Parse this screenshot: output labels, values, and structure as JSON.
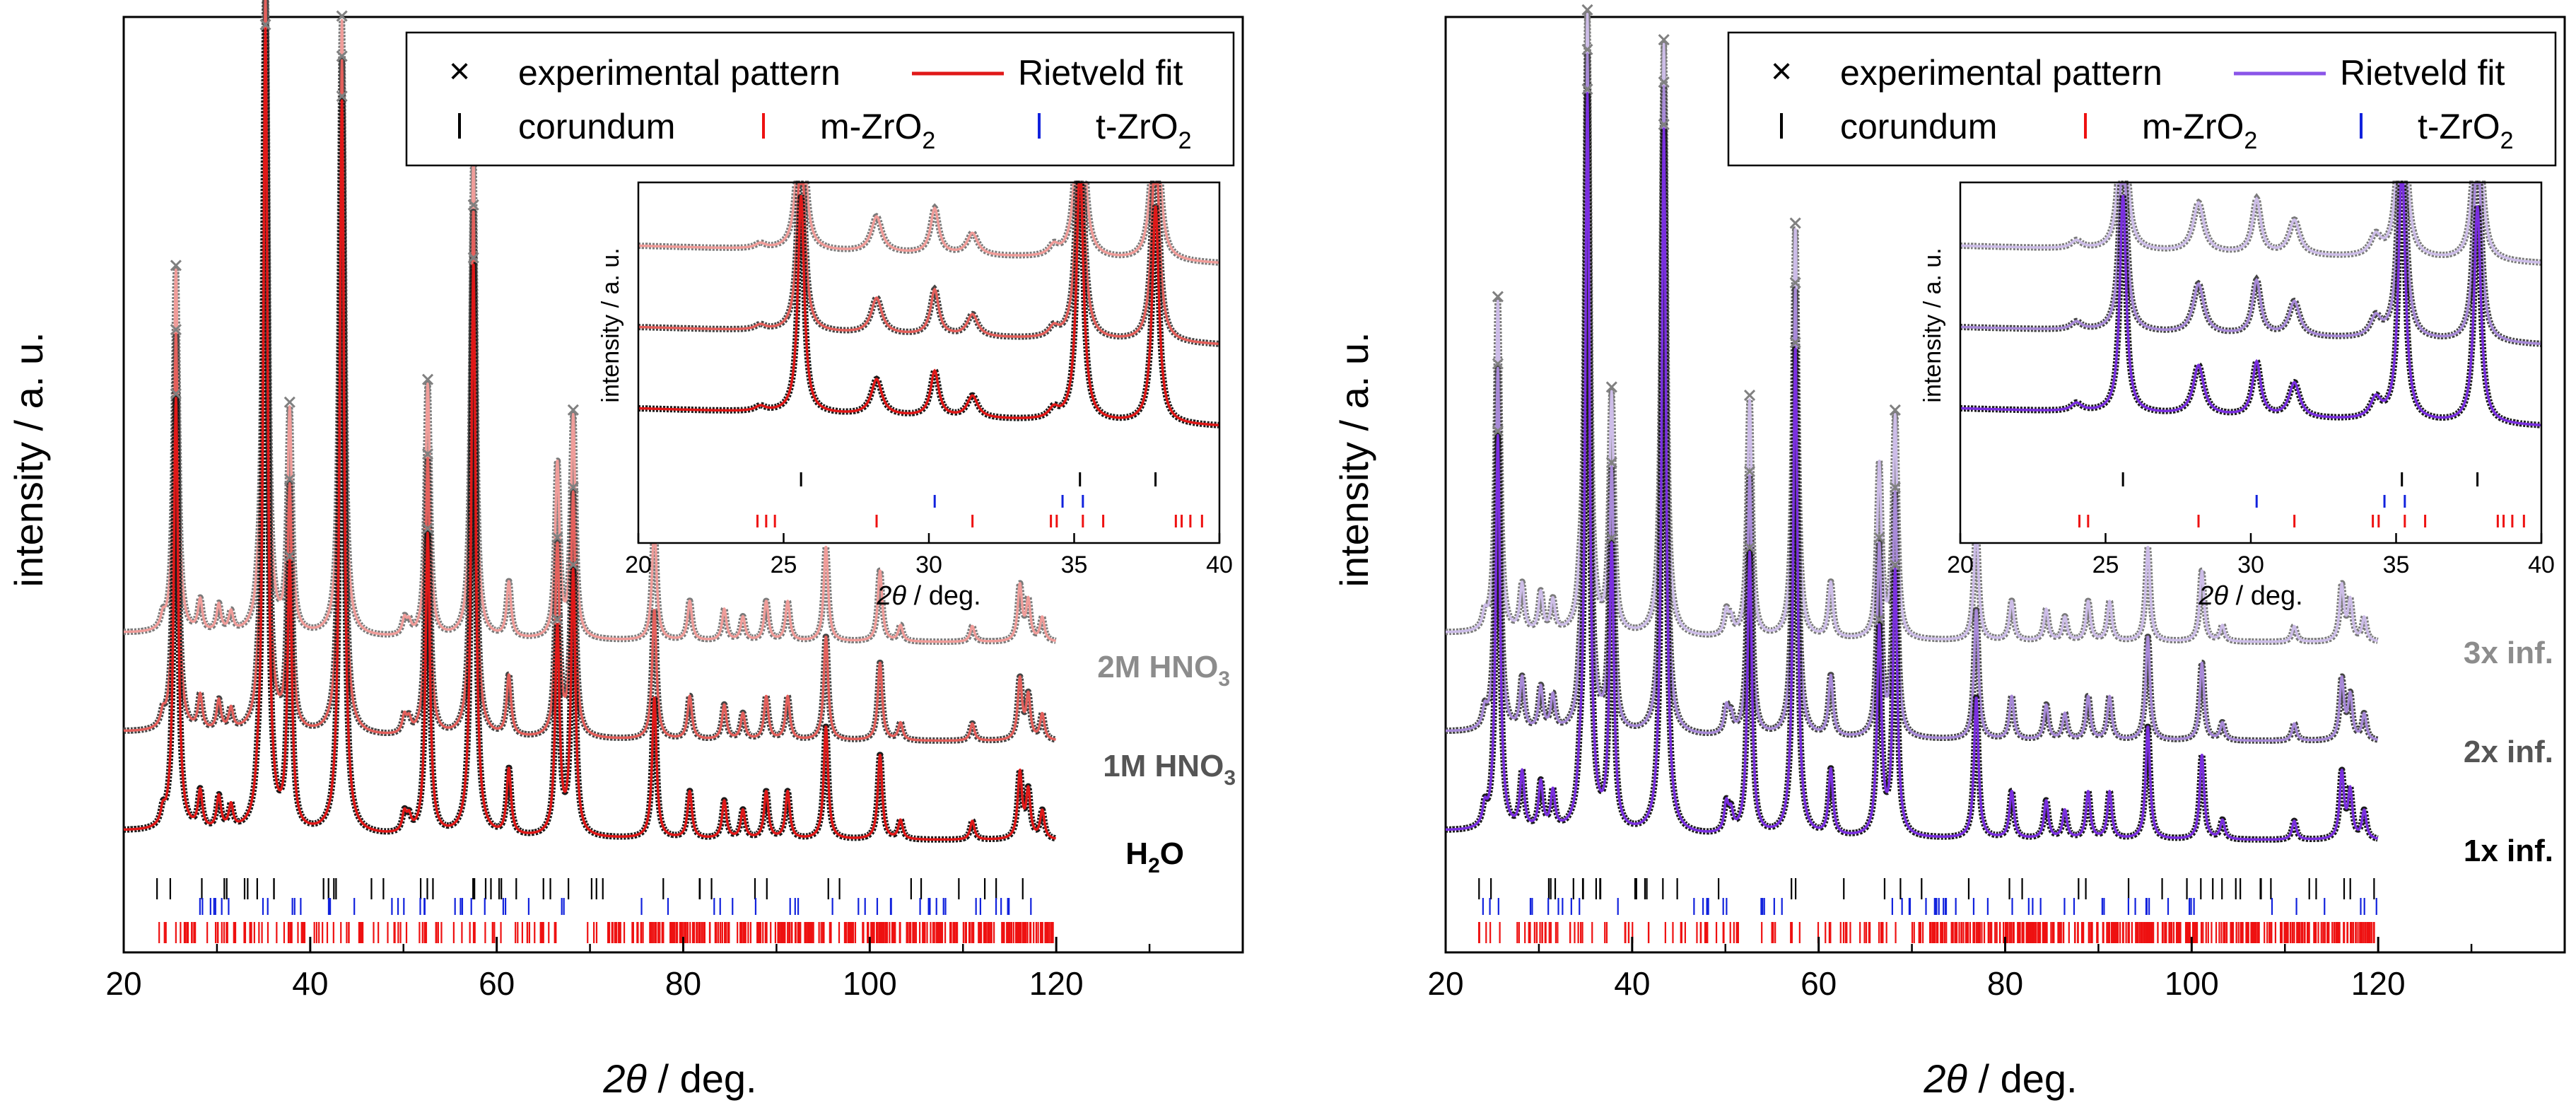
{
  "chart_data": [
    {
      "type": "line",
      "panel": "left",
      "xlabel_var": "2θ",
      "xlabel_unit": " / deg.",
      "ylabel": "intensity / a. u.",
      "xlim": [
        20,
        140
      ],
      "xticks": [
        20,
        40,
        60,
        80,
        100,
        120
      ],
      "x_data_range": [
        20,
        120
      ],
      "legend": {
        "position": "top-right",
        "entries": [
          {
            "marker": "×",
            "label": "experimental pattern"
          },
          {
            "marker": "line",
            "label": "Rietveld fit"
          },
          {
            "marker": "|",
            "label": "corundum"
          },
          {
            "marker": "|",
            "label": "m-ZrO",
            "sub": "2"
          },
          {
            "marker": "|",
            "label": "t-ZrO",
            "sub": "2"
          }
        ]
      },
      "series": [
        {
          "name": "H₂O",
          "label": "H",
          "sub": "2",
          "label_tail": "O",
          "fit_color": "#e01818",
          "marker_color": "#1a1a1a",
          "label_color": "#000000",
          "offset": 0
        },
        {
          "name": "1M HNO₃",
          "label": "1M HNO",
          "sub": "3",
          "label_tail": "",
          "fit_color": "#e4605c",
          "marker_color": "#444444",
          "label_color": "#555555",
          "offset": 1
        },
        {
          "name": "2M HNO₃",
          "label": "2M HNO",
          "sub": "3",
          "label_tail": "",
          "fit_color": "#f09d9a",
          "marker_color": "#7a7a7a",
          "label_color": "#8c8c8c",
          "offset": 2
        }
      ],
      "main_peaks": [
        {
          "x": 25.6,
          "h": 0.46
        },
        {
          "x": 35.2,
          "h": 0.85
        },
        {
          "x": 37.8,
          "h": 0.28
        },
        {
          "x": 43.4,
          "h": 0.78
        },
        {
          "x": 52.6,
          "h": 0.32
        },
        {
          "x": 57.5,
          "h": 0.61
        },
        {
          "x": 61.3,
          "h": 0.07
        },
        {
          "x": 66.5,
          "h": 0.22
        },
        {
          "x": 68.2,
          "h": 0.28
        },
        {
          "x": 76.9,
          "h": 0.15
        },
        {
          "x": 80.7,
          "h": 0.05
        },
        {
          "x": 84.4,
          "h": 0.04
        },
        {
          "x": 86.4,
          "h": 0.03
        },
        {
          "x": 88.9,
          "h": 0.05
        },
        {
          "x": 91.2,
          "h": 0.05
        },
        {
          "x": 95.3,
          "h": 0.12
        },
        {
          "x": 101.1,
          "h": 0.09
        },
        {
          "x": 103.3,
          "h": 0.02
        },
        {
          "x": 111.0,
          "h": 0.02
        },
        {
          "x": 116.1,
          "h": 0.07
        },
        {
          "x": 117.0,
          "h": 0.05
        },
        {
          "x": 118.5,
          "h": 0.03
        }
      ],
      "minor_peaks": [
        {
          "x": 24.2,
          "h": 0.015
        },
        {
          "x": 28.2,
          "h": 0.04
        },
        {
          "x": 30.2,
          "h": 0.035
        },
        {
          "x": 31.5,
          "h": 0.025
        },
        {
          "x": 34.4,
          "h": 0.02
        },
        {
          "x": 50.1,
          "h": 0.02
        },
        {
          "x": 50.6,
          "h": 0.015
        }
      ],
      "inset": {
        "xlim": [
          20,
          40
        ],
        "xticks": [
          20,
          25,
          30,
          35,
          40
        ],
        "xlabel_var": "2θ",
        "xlabel_unit": " / deg.",
        "ylabel": "intensity / a. u.",
        "peaks": [
          {
            "x": 24.2,
            "h": 0.05,
            "w": 0.22
          },
          {
            "x": 25.6,
            "h": 2.2,
            "w": 0.13
          },
          {
            "x": 28.2,
            "h": 0.36,
            "w": 0.22
          },
          {
            "x": 30.2,
            "h": 0.46,
            "w": 0.17
          },
          {
            "x": 31.5,
            "h": 0.22,
            "w": 0.22
          },
          {
            "x": 34.3,
            "h": 0.1,
            "w": 0.2
          },
          {
            "x": 35.2,
            "h": 2.6,
            "w": 0.14
          },
          {
            "x": 37.8,
            "h": 2.2,
            "w": 0.14
          }
        ],
        "ticks_corundum": [
          25.6,
          35.2,
          37.8
        ],
        "ticks_t": [
          30.2,
          34.6,
          35.3
        ],
        "ticks_m": [
          24.1,
          24.4,
          24.7,
          28.2,
          31.5,
          34.2,
          34.4,
          35.3,
          36.0,
          38.5,
          38.7,
          39.0,
          39.4
        ]
      }
    },
    {
      "type": "line",
      "panel": "right",
      "xlabel_var": "2θ",
      "xlabel_unit": " / deg.",
      "ylabel": "intensity / a. u.",
      "xlim": [
        20,
        140
      ],
      "xticks": [
        20,
        40,
        60,
        80,
        100,
        120
      ],
      "x_data_range": [
        20,
        120
      ],
      "legend": {
        "position": "top-right",
        "entries": [
          {
            "marker": "×",
            "label": "experimental pattern"
          },
          {
            "marker": "line",
            "label": "Rietveld fit"
          },
          {
            "marker": "|",
            "label": "corundum"
          },
          {
            "marker": "|",
            "label": "m-ZrO",
            "sub": "2"
          },
          {
            "marker": "|",
            "label": "t-ZrO",
            "sub": "2"
          }
        ]
      },
      "series": [
        {
          "name": "1x inf.",
          "label": "1x inf.",
          "sub": "",
          "label_tail": "",
          "fit_color": "#7a2fe0",
          "marker_color": "#1a1a1a",
          "label_color": "#000000",
          "offset": 0
        },
        {
          "name": "2x inf.",
          "label": "2x inf.",
          "sub": "",
          "label_tail": "",
          "fit_color": "#a88ad8",
          "marker_color": "#444444",
          "label_color": "#555555",
          "offset": 1
        },
        {
          "name": "3x inf.",
          "label": "3x inf.",
          "sub": "",
          "label_tail": "",
          "fit_color": "#cdbde8",
          "marker_color": "#7a7a7a",
          "label_color": "#8c8c8c",
          "offset": 2
        }
      ],
      "main_peaks": [
        {
          "x": 25.6,
          "h": 0.42
        },
        {
          "x": 35.2,
          "h": 0.78
        },
        {
          "x": 37.8,
          "h": 0.3
        },
        {
          "x": 43.4,
          "h": 0.75
        },
        {
          "x": 52.6,
          "h": 0.3
        },
        {
          "x": 57.5,
          "h": 0.52
        },
        {
          "x": 61.3,
          "h": 0.07
        },
        {
          "x": 66.5,
          "h": 0.22
        },
        {
          "x": 68.2,
          "h": 0.28
        },
        {
          "x": 76.9,
          "h": 0.15
        },
        {
          "x": 80.7,
          "h": 0.05
        },
        {
          "x": 84.4,
          "h": 0.04
        },
        {
          "x": 86.4,
          "h": 0.03
        },
        {
          "x": 88.9,
          "h": 0.05
        },
        {
          "x": 91.2,
          "h": 0.05
        },
        {
          "x": 95.3,
          "h": 0.12
        },
        {
          "x": 101.1,
          "h": 0.09
        },
        {
          "x": 103.3,
          "h": 0.02
        },
        {
          "x": 111.0,
          "h": 0.02
        },
        {
          "x": 116.1,
          "h": 0.07
        },
        {
          "x": 117.0,
          "h": 0.05
        },
        {
          "x": 118.5,
          "h": 0.03
        }
      ],
      "minor_peaks": [
        {
          "x": 24.2,
          "h": 0.02
        },
        {
          "x": 28.2,
          "h": 0.06
        },
        {
          "x": 30.2,
          "h": 0.05
        },
        {
          "x": 31.5,
          "h": 0.04
        },
        {
          "x": 34.4,
          "h": 0.03
        },
        {
          "x": 50.1,
          "h": 0.03
        },
        {
          "x": 50.6,
          "h": 0.02
        }
      ],
      "inset": {
        "xlim": [
          20,
          40
        ],
        "xticks": [
          20,
          25,
          30,
          35,
          40
        ],
        "xlabel_var": "2θ",
        "xlabel_unit": " / deg.",
        "ylabel": "intensity / a. u.",
        "peaks": [
          {
            "x": 24.0,
            "h": 0.08,
            "w": 0.22
          },
          {
            "x": 25.6,
            "h": 2.2,
            "w": 0.13
          },
          {
            "x": 28.2,
            "h": 0.5,
            "w": 0.22
          },
          {
            "x": 30.2,
            "h": 0.55,
            "w": 0.17
          },
          {
            "x": 31.5,
            "h": 0.35,
            "w": 0.22
          },
          {
            "x": 34.3,
            "h": 0.2,
            "w": 0.22
          },
          {
            "x": 35.2,
            "h": 2.6,
            "w": 0.14
          },
          {
            "x": 37.8,
            "h": 2.2,
            "w": 0.14
          }
        ],
        "ticks_corundum": [
          25.6,
          35.2,
          37.8
        ],
        "ticks_t": [
          30.2,
          34.6,
          35.3
        ],
        "ticks_m": [
          24.1,
          24.4,
          28.2,
          31.5,
          34.2,
          34.4,
          35.3,
          36.0,
          38.5,
          38.7,
          39.0,
          39.4
        ]
      }
    }
  ],
  "colors": {
    "corundum_tick": "#000000",
    "m_zro2_tick": "#ee1111",
    "t_zro2_tick": "#1122dd"
  }
}
